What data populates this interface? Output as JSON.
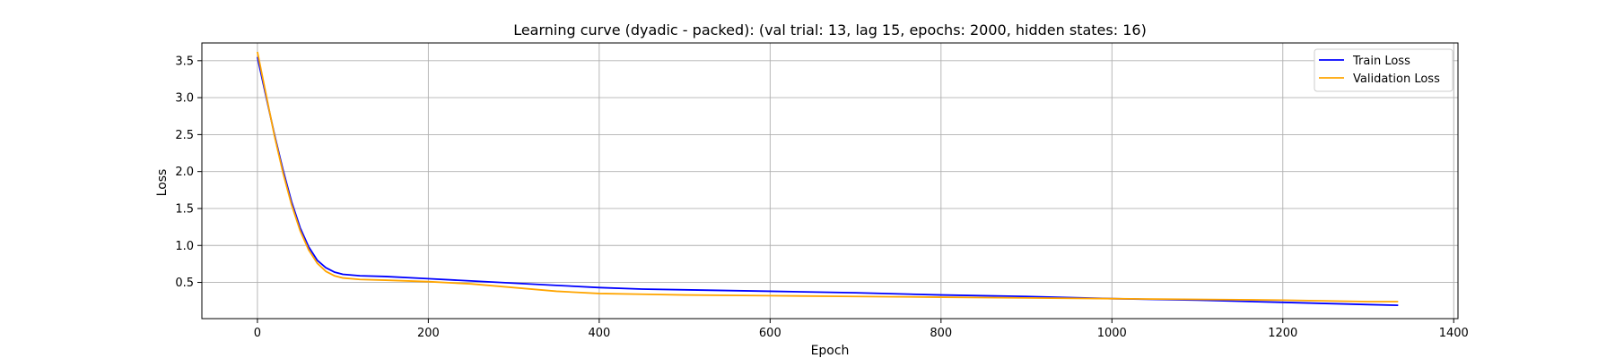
{
  "chart_data": {
    "type": "line",
    "title": "Learning curve (dyadic - packed): (val trial: 13, lag 15, epochs: 2000, hidden states: 16)",
    "xlabel": "Epoch",
    "ylabel": "Loss",
    "xlim": [
      -65,
      1405
    ],
    "ylim": [
      0.01,
      3.74
    ],
    "xticks": [
      0,
      200,
      400,
      600,
      800,
      1000,
      1200,
      1400
    ],
    "yticks": [
      0.5,
      1.0,
      1.5,
      2.0,
      2.5,
      3.0,
      3.5
    ],
    "xtick_labels": [
      "0",
      "200",
      "400",
      "600",
      "800",
      "1000",
      "1200",
      "1400"
    ],
    "ytick_labels": [
      "0.5",
      "1.0",
      "1.5",
      "2.0",
      "2.5",
      "3.0",
      "3.5"
    ],
    "grid": true,
    "legend_position": "top-right",
    "series": [
      {
        "name": "Train Loss",
        "color": "#0000ff",
        "x": [
          0,
          10,
          20,
          30,
          40,
          50,
          60,
          70,
          80,
          90,
          100,
          120,
          150,
          200,
          250,
          300,
          350,
          400,
          450,
          500,
          600,
          700,
          800,
          900,
          1000,
          1100,
          1200,
          1300,
          1335
        ],
        "y": [
          3.55,
          3.02,
          2.5,
          2.02,
          1.59,
          1.24,
          0.98,
          0.8,
          0.7,
          0.64,
          0.61,
          0.59,
          0.58,
          0.55,
          0.52,
          0.49,
          0.46,
          0.43,
          0.41,
          0.4,
          0.38,
          0.36,
          0.33,
          0.31,
          0.28,
          0.26,
          0.23,
          0.2,
          0.19
        ]
      },
      {
        "name": "Validation Loss",
        "color": "#ffa500",
        "x": [
          0,
          10,
          20,
          30,
          40,
          50,
          60,
          70,
          80,
          90,
          100,
          120,
          150,
          200,
          250,
          300,
          350,
          400,
          450,
          500,
          600,
          700,
          800,
          900,
          1000,
          1100,
          1200,
          1300,
          1335
        ],
        "y": [
          3.62,
          3.05,
          2.48,
          1.98,
          1.55,
          1.2,
          0.94,
          0.76,
          0.65,
          0.59,
          0.56,
          0.54,
          0.53,
          0.51,
          0.48,
          0.43,
          0.38,
          0.35,
          0.34,
          0.33,
          0.32,
          0.31,
          0.3,
          0.29,
          0.28,
          0.27,
          0.26,
          0.24,
          0.24
        ]
      }
    ]
  }
}
